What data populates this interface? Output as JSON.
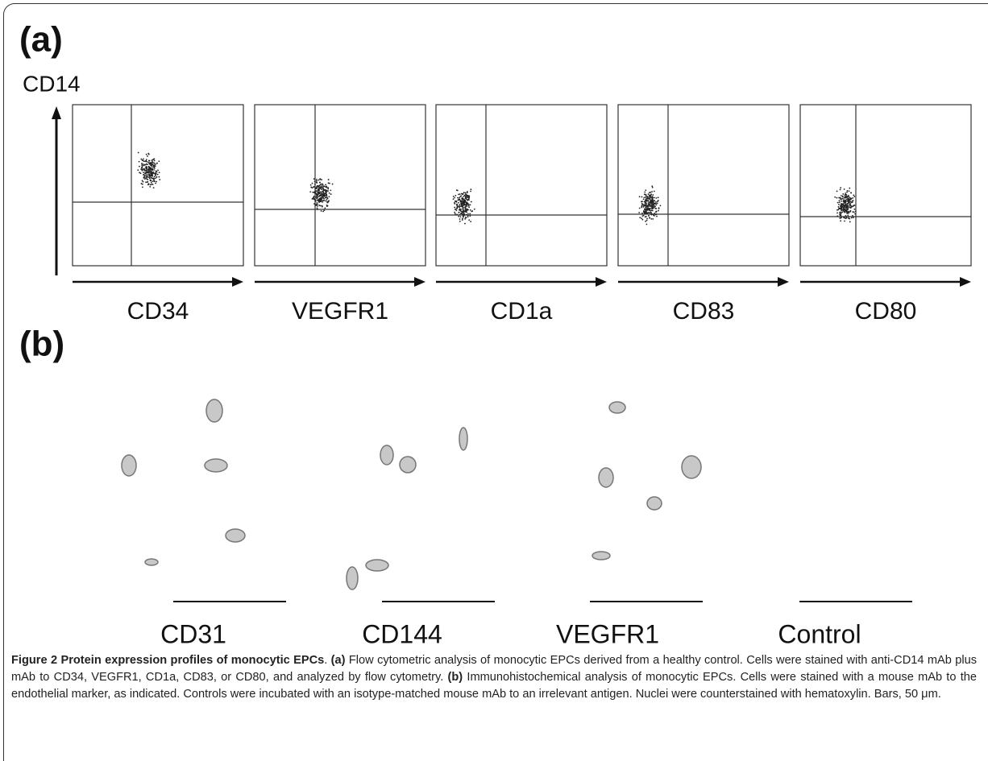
{
  "panel_a": {
    "label": "(a)",
    "y_axis_label": "CD14",
    "x_axis_labels": [
      "CD34",
      "VEGFR1",
      "CD1a",
      "CD83",
      "CD80"
    ]
  },
  "panel_b": {
    "label": "(b)",
    "image_labels": [
      "CD31",
      "CD144",
      "VEGFR1",
      "Control"
    ]
  },
  "caption": {
    "label": "Figure 2",
    "title": "Protein expression profiles of monocytic EPCs",
    "title_end": ".",
    "a_label": "(a)",
    "a_text": "Flow cytometric analysis of monocytic EPCs derived from a healthy control. Cells were stained with anti-CD14 mAb plus mAb to CD34, VEGFR1, CD1a, CD83, or CD80, and analyzed by flow cytometry.",
    "b_label": "(b)",
    "b_text": "Immunohistochemical analysis of monocytic EPCs. Cells were stained with a mouse mAb to the endothelial marker, as indicated. Controls were incubated with an isotype-matched mouse mAb to an irrelevant antigen. Nuclei were counterstained with hematoxylin. Bars, 50 μm."
  }
}
